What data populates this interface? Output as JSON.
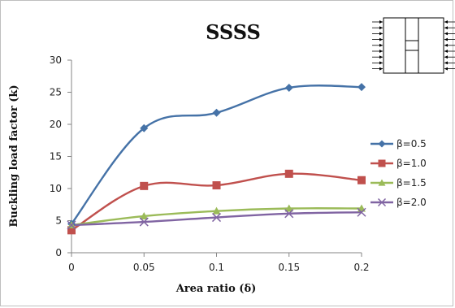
{
  "chart_data": {
    "type": "line",
    "title": "SSSS",
    "xlabel": "Area ratio (δ)",
    "ylabel": "Buckling load factor (k)",
    "categories": [
      "0",
      "0.05",
      "0.1",
      "0.15",
      "0.2"
    ],
    "ylim": [
      0,
      30
    ],
    "yticks": [
      0,
      5,
      10,
      15,
      20,
      25,
      30
    ],
    "grid": false,
    "legend_position": "right",
    "series": [
      {
        "name": "β=0.5",
        "values": [
          4.5,
          19.4,
          21.8,
          25.7,
          25.8
        ],
        "color": "#4572A7",
        "marker": "diamond"
      },
      {
        "name": "β=1.0",
        "values": [
          3.5,
          10.4,
          10.5,
          12.3,
          11.3
        ],
        "color": "#C0504D",
        "marker": "square"
      },
      {
        "name": "β=1.5",
        "values": [
          4.3,
          5.7,
          6.5,
          6.9,
          6.9
        ],
        "color": "#9BBB59",
        "marker": "triangle"
      },
      {
        "name": "β=2.0",
        "values": [
          4.3,
          4.8,
          5.5,
          6.1,
          6.3
        ],
        "color": "#8064A2",
        "marker": "x"
      }
    ]
  }
}
